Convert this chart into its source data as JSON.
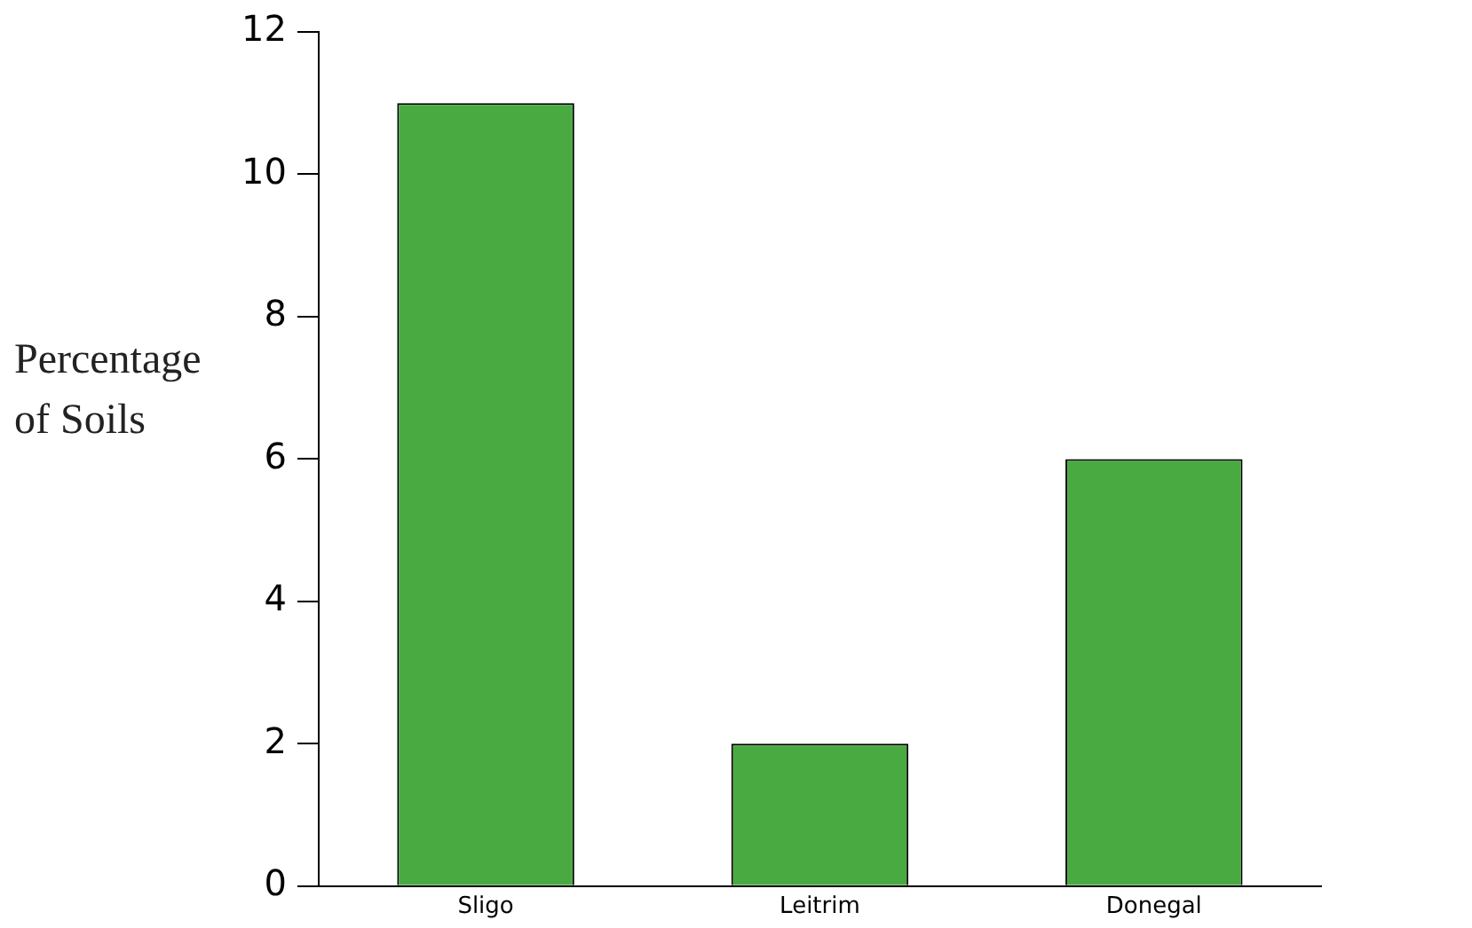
{
  "chart_data": {
    "type": "bar",
    "ylabel": "Percentage of Soils",
    "categories": [
      "Sligo",
      "Leitrim",
      "Donegal"
    ],
    "values": [
      11,
      2,
      6
    ],
    "color": "#4aaa42",
    "ylim": [
      0,
      12
    ],
    "yticks": [
      0,
      2,
      4,
      6,
      8,
      10,
      12
    ],
    "grid": false,
    "legend": false
  }
}
